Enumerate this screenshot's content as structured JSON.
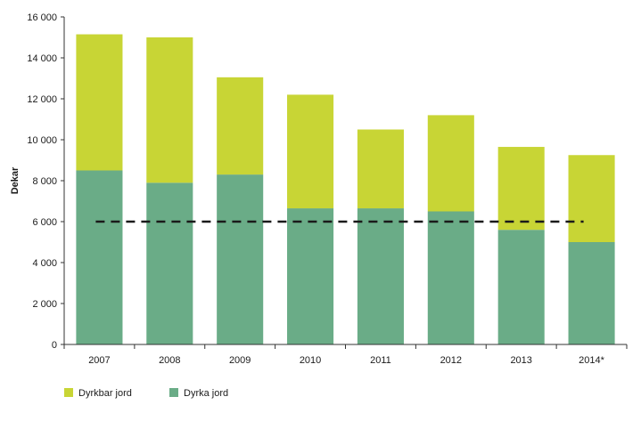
{
  "chart_data": {
    "type": "bar",
    "stacked": true,
    "categories": [
      "2007",
      "2008",
      "2009",
      "2010",
      "2011",
      "2012",
      "2013",
      "2014*"
    ],
    "series": [
      {
        "name": "Dyrka jord",
        "color": "#6aac87",
        "values": [
          8500,
          7900,
          8300,
          6650,
          6650,
          6500,
          5600,
          5000
        ]
      },
      {
        "name": "Dyrkbar jord",
        "color": "#c8d535",
        "values": [
          6650,
          7100,
          4750,
          5550,
          3850,
          4700,
          4050,
          4250
        ]
      }
    ],
    "reference_line": {
      "value": 6000,
      "style": "dashed",
      "color": "#1a1a1a"
    },
    "ylabel": "Dekar",
    "xlabel": "",
    "ylim": [
      0,
      16000
    ],
    "yticks": [
      0,
      2000,
      4000,
      6000,
      8000,
      10000,
      12000,
      14000,
      16000
    ],
    "ytick_labels": [
      "0",
      "2 000",
      "4 000",
      "6 000",
      "8 000",
      "10 000",
      "12 000",
      "14 000",
      "16 000"
    ],
    "grid": false,
    "legend_position": "bottom-left",
    "legend": [
      {
        "label": "Dyrkbar jord",
        "color": "#c8d535"
      },
      {
        "label": "Dyrka jord",
        "color": "#6aac87"
      }
    ]
  }
}
